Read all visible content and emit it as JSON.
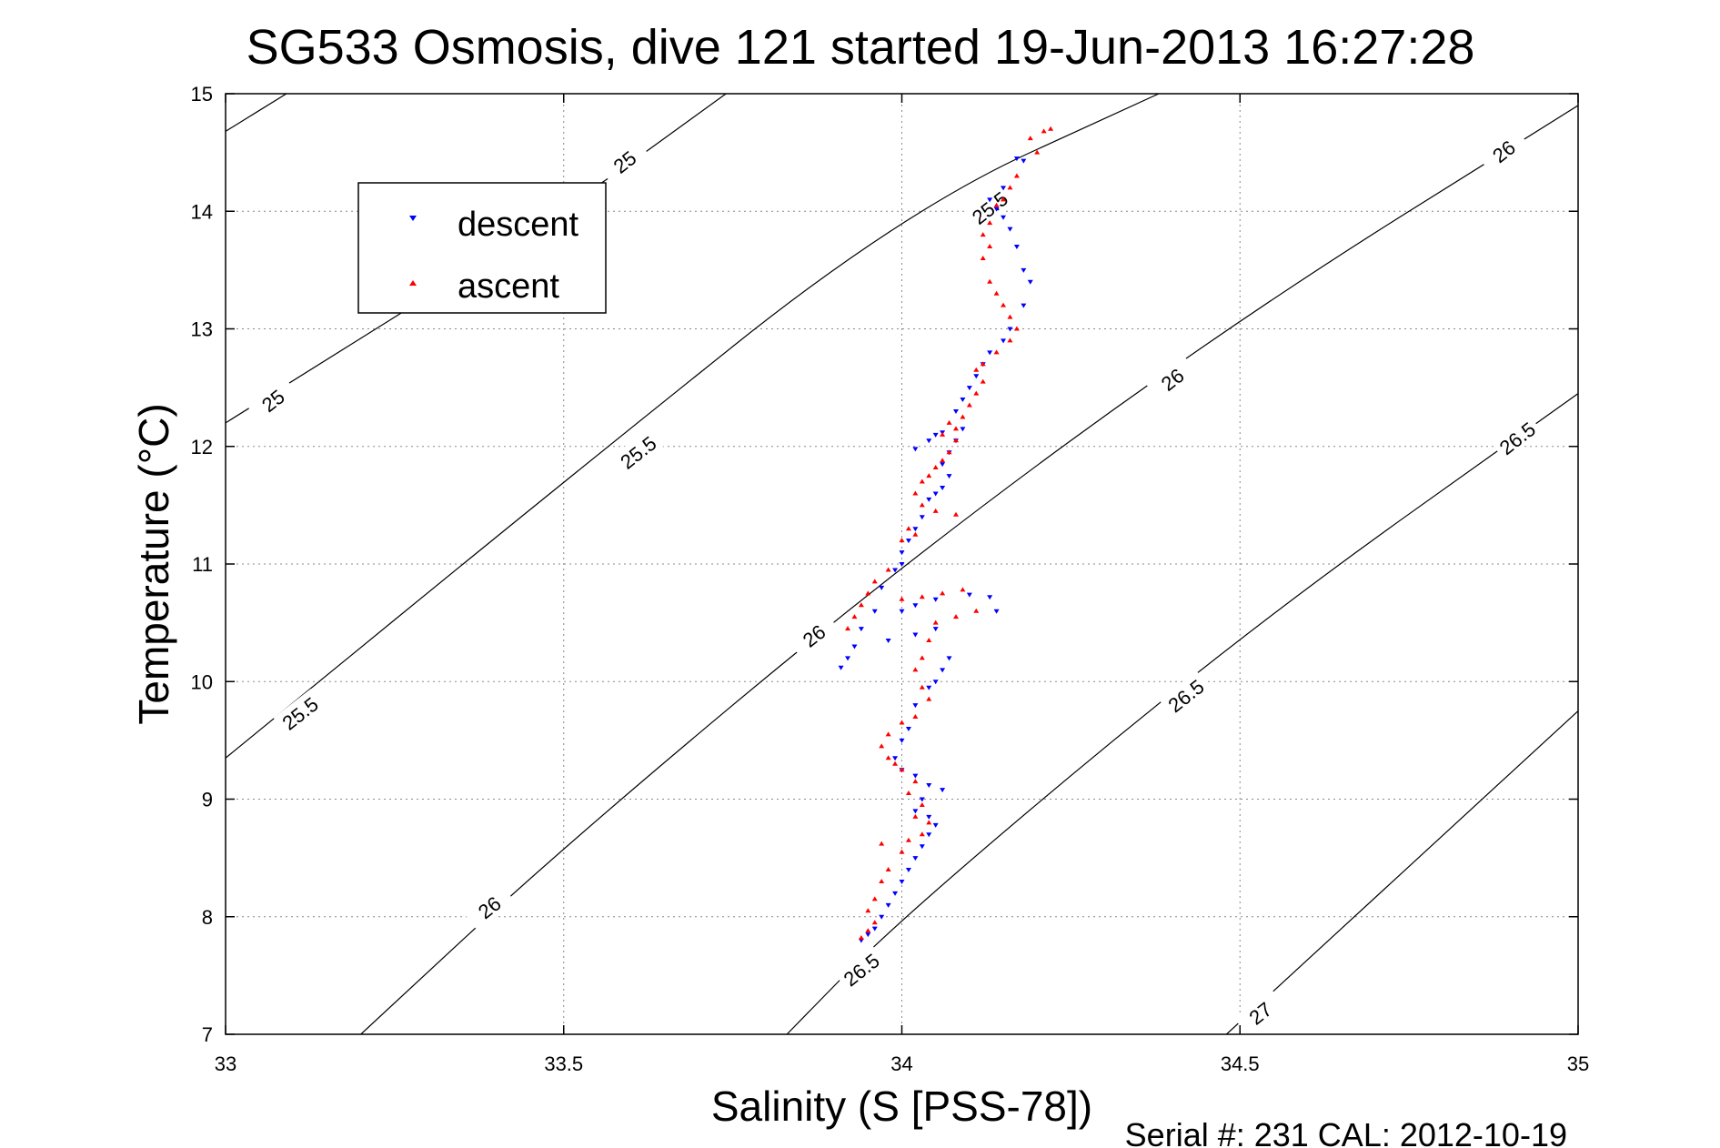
{
  "chart_data": {
    "type": "scatter",
    "title": "SG533 Osmosis, dive 121 started 19-Jun-2013 16:27:28",
    "xlabel": "Salinity (S [PSS-78])",
    "ylabel": "Temperature (°C)",
    "xlim": [
      33,
      35
    ],
    "ylim": [
      7,
      15
    ],
    "xticks": [
      "33",
      "33.5",
      "34",
      "34.5",
      "35"
    ],
    "yticks": [
      "7",
      "8",
      "9",
      "10",
      "11",
      "12",
      "13",
      "14",
      "15"
    ],
    "grid": true,
    "legend_position": "top-left",
    "footer": "Serial #: 231  CAL: 2012-10-19",
    "contours": [
      {
        "label": "25",
        "line_color": "#000000",
        "points": [
          [
            33.0,
            14.68
          ],
          [
            33.09,
            15.0
          ]
        ]
      },
      {
        "label": "25",
        "line_color": "#000000",
        "points": [
          [
            33.0,
            12.2
          ],
          [
            33.5,
            14.0
          ],
          [
            33.74,
            15.0
          ]
        ]
      },
      {
        "label": "25.5",
        "line_color": "#000000",
        "points": [
          [
            33.0,
            9.35
          ],
          [
            33.5,
            11.7
          ],
          [
            34.0,
            14.0
          ],
          [
            34.38,
            15.0
          ]
        ]
      },
      {
        "label": "26",
        "line_color": "#000000",
        "points": [
          [
            33.2,
            7.0
          ],
          [
            33.5,
            8.6
          ],
          [
            34.0,
            11.0
          ],
          [
            34.5,
            13.1
          ],
          [
            35.0,
            14.9
          ]
        ]
      },
      {
        "label": "26.5",
        "line_color": "#000000",
        "points": [
          [
            33.83,
            7.0
          ],
          [
            34.0,
            8.0
          ],
          [
            34.5,
            10.4
          ],
          [
            35.0,
            12.45
          ]
        ]
      },
      {
        "label": "27",
        "line_color": "#000000",
        "points": [
          [
            34.48,
            7.0
          ],
          [
            35.0,
            9.75
          ]
        ]
      }
    ],
    "contour_labels": [
      {
        "text": "25",
        "x": 33.59,
        "y": 14.42
      },
      {
        "text": "25",
        "x": 33.07,
        "y": 12.39
      },
      {
        "text": "25.5",
        "x": 34.13,
        "y": 14.03
      },
      {
        "text": "25.5",
        "x": 33.61,
        "y": 11.95
      },
      {
        "text": "25.5",
        "x": 33.11,
        "y": 9.73
      },
      {
        "text": "26",
        "x": 34.89,
        "y": 14.51
      },
      {
        "text": "26",
        "x": 34.4,
        "y": 12.57
      },
      {
        "text": "26",
        "x": 33.87,
        "y": 10.39
      },
      {
        "text": "26",
        "x": 33.39,
        "y": 8.08
      },
      {
        "text": "26.5",
        "x": 34.91,
        "y": 12.07
      },
      {
        "text": "26.5",
        "x": 34.42,
        "y": 9.88
      },
      {
        "text": "26.5",
        "x": 33.94,
        "y": 7.55
      },
      {
        "text": "27",
        "x": 34.53,
        "y": 7.18
      }
    ],
    "series": [
      {
        "name": "descent",
        "color": "#0000ff",
        "marker": "triangle-down",
        "points": [
          [
            34.17,
            14.45
          ],
          [
            34.18,
            14.43
          ],
          [
            34.15,
            14.2
          ],
          [
            34.13,
            14.1
          ],
          [
            34.14,
            14.02
          ],
          [
            34.15,
            13.95
          ],
          [
            34.16,
            13.85
          ],
          [
            34.17,
            13.7
          ],
          [
            34.18,
            13.5
          ],
          [
            34.19,
            13.4
          ],
          [
            34.18,
            13.2
          ],
          [
            34.16,
            13.0
          ],
          [
            34.15,
            12.9
          ],
          [
            34.13,
            12.8
          ],
          [
            34.12,
            12.7
          ],
          [
            34.11,
            12.6
          ],
          [
            34.1,
            12.5
          ],
          [
            34.09,
            12.4
          ],
          [
            34.08,
            12.3
          ],
          [
            34.09,
            12.15
          ],
          [
            34.08,
            12.05
          ],
          [
            34.07,
            11.95
          ],
          [
            34.06,
            11.85
          ],
          [
            34.07,
            11.75
          ],
          [
            34.06,
            11.65
          ],
          [
            34.05,
            11.6
          ],
          [
            34.04,
            11.55
          ],
          [
            34.05,
            12.1
          ],
          [
            34.06,
            12.12
          ],
          [
            34.04,
            12.05
          ],
          [
            34.02,
            11.98
          ],
          [
            34.03,
            11.4
          ],
          [
            34.02,
            11.3
          ],
          [
            34.01,
            11.2
          ],
          [
            34.0,
            11.1
          ],
          [
            34.0,
            11.0
          ],
          [
            33.99,
            10.95
          ],
          [
            33.97,
            10.8
          ],
          [
            33.96,
            10.6
          ],
          [
            33.94,
            10.45
          ],
          [
            33.93,
            10.3
          ],
          [
            33.92,
            10.2
          ],
          [
            33.91,
            10.12
          ],
          [
            34.0,
            10.6
          ],
          [
            34.02,
            10.65
          ],
          [
            34.05,
            10.7
          ],
          [
            34.1,
            10.74
          ],
          [
            34.13,
            10.72
          ],
          [
            34.14,
            10.6
          ],
          [
            34.05,
            10.45
          ],
          [
            34.02,
            10.4
          ],
          [
            33.98,
            10.35
          ],
          [
            34.07,
            10.2
          ],
          [
            34.06,
            10.1
          ],
          [
            34.05,
            10.0
          ],
          [
            34.04,
            9.95
          ],
          [
            34.02,
            9.8
          ],
          [
            34.01,
            9.6
          ],
          [
            34.0,
            9.5
          ],
          [
            33.99,
            9.35
          ],
          [
            34.0,
            9.25
          ],
          [
            34.02,
            9.2
          ],
          [
            34.04,
            9.12
          ],
          [
            34.06,
            9.08
          ],
          [
            34.03,
            9.0
          ],
          [
            34.02,
            8.9
          ],
          [
            34.04,
            8.85
          ],
          [
            34.05,
            8.78
          ],
          [
            34.04,
            8.7
          ],
          [
            34.03,
            8.6
          ],
          [
            34.02,
            8.5
          ],
          [
            34.01,
            8.4
          ],
          [
            34.0,
            8.3
          ],
          [
            33.99,
            8.2
          ],
          [
            33.98,
            8.1
          ],
          [
            33.97,
            8.0
          ],
          [
            33.96,
            7.9
          ],
          [
            33.95,
            7.85
          ],
          [
            33.94,
            7.8
          ]
        ]
      },
      {
        "name": "ascent",
        "color": "#ff0000",
        "marker": "triangle-up",
        "points": [
          [
            34.22,
            14.7
          ],
          [
            34.21,
            14.68
          ],
          [
            34.19,
            14.62
          ],
          [
            34.2,
            14.5
          ],
          [
            34.17,
            14.3
          ],
          [
            34.16,
            14.2
          ],
          [
            34.15,
            14.1
          ],
          [
            34.14,
            14.05
          ],
          [
            34.13,
            13.9
          ],
          [
            34.12,
            13.8
          ],
          [
            34.13,
            13.7
          ],
          [
            34.12,
            13.6
          ],
          [
            34.13,
            13.4
          ],
          [
            34.14,
            13.3
          ],
          [
            34.15,
            13.2
          ],
          [
            34.16,
            13.1
          ],
          [
            34.17,
            13.0
          ],
          [
            34.16,
            12.9
          ],
          [
            34.14,
            12.8
          ],
          [
            34.12,
            12.7
          ],
          [
            34.11,
            12.65
          ],
          [
            34.12,
            12.55
          ],
          [
            34.11,
            12.45
          ],
          [
            34.1,
            12.35
          ],
          [
            34.09,
            12.25
          ],
          [
            34.08,
            12.15
          ],
          [
            34.07,
            12.2
          ],
          [
            34.06,
            12.1
          ],
          [
            34.08,
            12.05
          ],
          [
            34.07,
            11.95
          ],
          [
            34.06,
            11.88
          ],
          [
            34.05,
            11.82
          ],
          [
            34.04,
            11.75
          ],
          [
            34.03,
            11.7
          ],
          [
            34.02,
            11.6
          ],
          [
            34.03,
            11.5
          ],
          [
            34.05,
            11.45
          ],
          [
            34.08,
            11.42
          ],
          [
            34.01,
            11.3
          ],
          [
            34.0,
            11.2
          ],
          [
            34.02,
            11.25
          ],
          [
            33.98,
            10.95
          ],
          [
            33.96,
            10.85
          ],
          [
            33.95,
            10.75
          ],
          [
            33.94,
            10.65
          ],
          [
            33.93,
            10.55
          ],
          [
            33.92,
            10.45
          ],
          [
            34.0,
            10.7
          ],
          [
            34.03,
            10.72
          ],
          [
            34.06,
            10.75
          ],
          [
            34.09,
            10.78
          ],
          [
            34.11,
            10.6
          ],
          [
            34.08,
            10.55
          ],
          [
            34.05,
            10.5
          ],
          [
            34.04,
            10.35
          ],
          [
            34.03,
            10.2
          ],
          [
            34.02,
            10.1
          ],
          [
            34.03,
            9.95
          ],
          [
            34.04,
            9.85
          ],
          [
            34.02,
            9.7
          ],
          [
            34.0,
            9.65
          ],
          [
            33.98,
            9.55
          ],
          [
            33.97,
            9.45
          ],
          [
            33.98,
            9.35
          ],
          [
            33.99,
            9.3
          ],
          [
            34.0,
            9.25
          ],
          [
            34.02,
            9.15
          ],
          [
            34.01,
            9.05
          ],
          [
            34.03,
            8.95
          ],
          [
            34.02,
            8.85
          ],
          [
            34.04,
            8.8
          ],
          [
            34.03,
            8.7
          ],
          [
            34.01,
            8.65
          ],
          [
            34.0,
            8.55
          ],
          [
            33.97,
            8.62
          ],
          [
            33.98,
            8.4
          ],
          [
            33.97,
            8.3
          ],
          [
            33.96,
            8.15
          ],
          [
            33.95,
            8.05
          ],
          [
            33.96,
            7.95
          ],
          [
            33.95,
            7.88
          ],
          [
            33.94,
            7.82
          ]
        ]
      }
    ]
  }
}
